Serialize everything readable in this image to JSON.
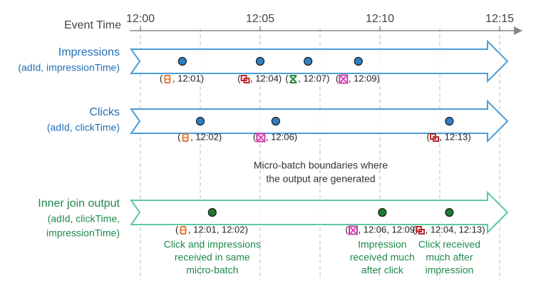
{
  "axis": {
    "label": "Event Time",
    "ticks": [
      "12:00",
      "12:05",
      "12:10",
      "12:15"
    ]
  },
  "rows": [
    {
      "id": "impressions",
      "title": "Impressions",
      "subtitle": [
        "(adId, impressionTime)"
      ],
      "color": "#1f6fb5",
      "events": [
        {
          "minute": 1.75,
          "icon": "square-orange-icon",
          "label": ", 12:01"
        },
        {
          "minute": 5.0,
          "icon": "square-red-icon",
          "label": ", 12:04"
        },
        {
          "minute": 7.0,
          "icon": "x-green-icon",
          "label": ", 12:07"
        },
        {
          "minute": 9.1,
          "icon": "x-magenta-icon",
          "label": ", 12:09"
        }
      ]
    },
    {
      "id": "clicks",
      "title": "Clicks",
      "subtitle": [
        "(adId, clickTime)"
      ],
      "color": "#1f6fb5",
      "events": [
        {
          "minute": 2.5,
          "icon": "square-orange-icon",
          "label": ", 12:02"
        },
        {
          "minute": 5.65,
          "icon": "x-magenta-icon",
          "label": ", 12:06"
        },
        {
          "minute": 12.9,
          "icon": "square-red-icon",
          "label": ", 12:13"
        }
      ]
    },
    {
      "id": "join",
      "title": "Inner join output",
      "subtitle": [
        "(adId, clickTime,",
        "impressionTime)"
      ],
      "color": "#1f8a4c",
      "events": [
        {
          "minute": 3.0,
          "icon": "square-orange-icon",
          "label": ", 12:01, 12:02"
        },
        {
          "minute": 10.1,
          "icon": "x-magenta-icon",
          "label": ", 12:06, 12:09"
        },
        {
          "minute": 12.9,
          "icon": "square-red-icon",
          "label": ", 12:04, 12:13"
        }
      ]
    }
  ],
  "boundary_note": [
    "Micro-batch boundaries where",
    "the output are generated"
  ],
  "annotations": [
    {
      "minute": 3.0,
      "lines": [
        "Click and impressions",
        "received in same",
        "micro-batch"
      ]
    },
    {
      "minute": 10.1,
      "lines": [
        "Impression",
        "received much",
        "after click"
      ]
    },
    {
      "minute": 12.9,
      "lines": [
        "Click received",
        "much after",
        "impression"
      ]
    }
  ],
  "colors": {
    "arrow_blue": "#4a9fd8",
    "arrow_green": "#5dc9a1",
    "dot_blue": "#2e7fc2",
    "dot_green": "#1e7a34",
    "dashed": "#bbbbbb",
    "annotation_green": "#1f8a4c",
    "icon_orange": "#e8772e",
    "icon_red": "#c0282d",
    "icon_green": "#2c8c3e",
    "icon_magenta": "#d23ca8"
  }
}
